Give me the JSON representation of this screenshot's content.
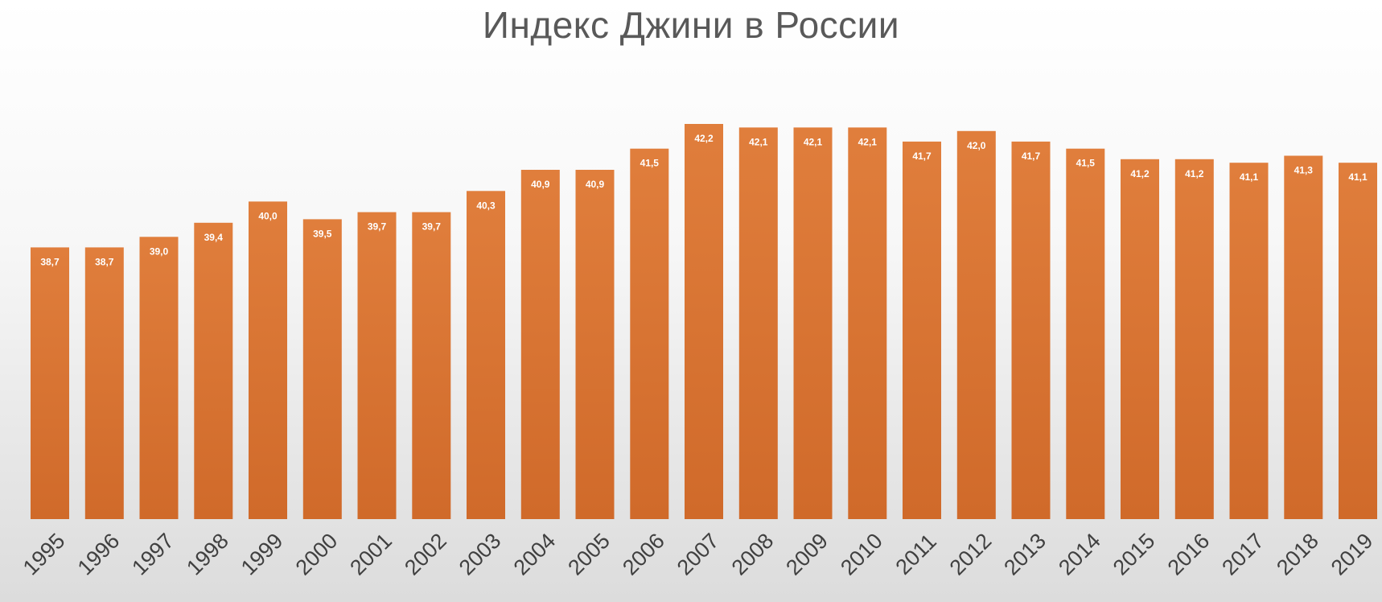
{
  "chart_data": {
    "type": "bar",
    "title": "Индекс Джини в России",
    "xlabel": "",
    "ylabel": "",
    "categories": [
      "1995",
      "1996",
      "1997",
      "1998",
      "1999",
      "2000",
      "2001",
      "2002",
      "2003",
      "2004",
      "2005",
      "2006",
      "2007",
      "2008",
      "2009",
      "2010",
      "2011",
      "2012",
      "2013",
      "2014",
      "2015",
      "2016",
      "2017",
      "2018",
      "2019"
    ],
    "values": [
      38.7,
      38.7,
      39.0,
      39.4,
      40.0,
      39.5,
      39.7,
      39.7,
      40.3,
      40.9,
      40.9,
      41.5,
      42.2,
      42.1,
      42.1,
      42.1,
      41.7,
      42.0,
      41.7,
      41.5,
      41.2,
      41.2,
      41.1,
      41.3,
      41.1
    ],
    "value_labels": [
      "38,7",
      "38,7",
      "39,0",
      "39,4",
      "40,0",
      "39,5",
      "39,7",
      "39,7",
      "40,3",
      "40,9",
      "40,9",
      "41,5",
      "42,2",
      "42,1",
      "42,1",
      "42,1",
      "41,7",
      "42,0",
      "41,7",
      "41,5",
      "41,2",
      "41,2",
      "41,1",
      "41,3",
      "41,1"
    ],
    "bar_color": "#E07E3C",
    "bar_color_dark": "#D06A2A",
    "grid": false,
    "legend": "none"
  }
}
